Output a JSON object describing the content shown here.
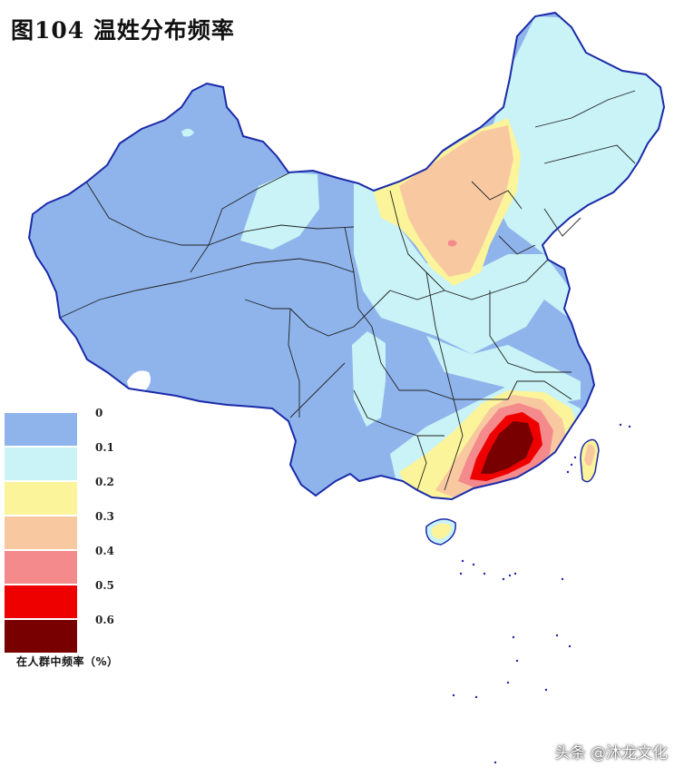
{
  "title": "图104   温姓分布频率",
  "legend": {
    "levels": [
      {
        "label": "0",
        "color": "#8fb4ec"
      },
      {
        "label": "0.1",
        "color": "#c9f3f6"
      },
      {
        "label": "0.2",
        "color": "#fbf49b"
      },
      {
        "label": "0.3",
        "color": "#f8c9a1"
      },
      {
        "label": "0.4",
        "color": "#f48a8c"
      },
      {
        "label": "0.5",
        "color": "#ef0000"
      },
      {
        "label": "0.6",
        "color": "#780000"
      }
    ],
    "caption": "在人群中频率（%）"
  },
  "colors": {
    "base": "#8fb4ec",
    "light": "#c9f3f6",
    "yellow": "#fbf49b",
    "orange": "#f8c9a1",
    "pink": "#f48a8c",
    "red": "#ef0000",
    "dark": "#780000",
    "border": "#1a2aa8"
  },
  "watermark": "头条 @沐龙文化"
}
